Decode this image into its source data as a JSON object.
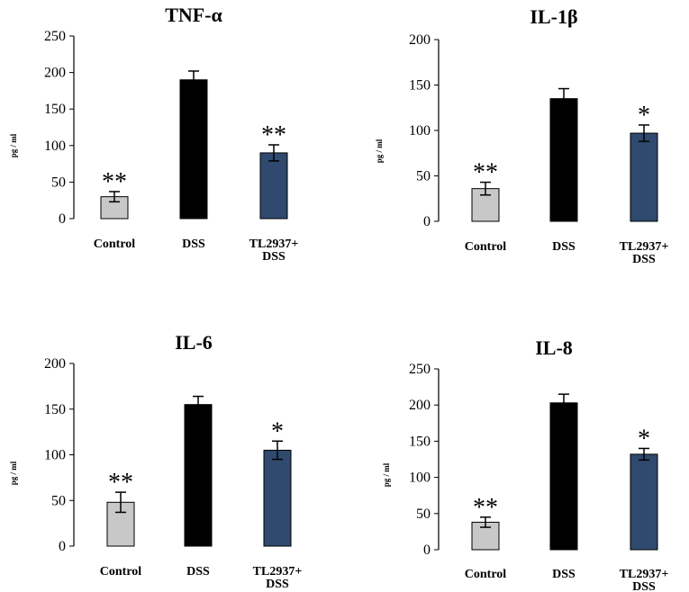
{
  "chart_data": [
    {
      "type": "bar",
      "title": "TNF-α",
      "ylabel": "pg / ml",
      "xlabel": "",
      "ylim": [
        0,
        250
      ],
      "yticks": [
        0,
        50,
        100,
        150,
        200,
        250
      ],
      "categories": [
        [
          "Control"
        ],
        [
          "DSS"
        ],
        [
          "TL2937+",
          "DSS"
        ]
      ],
      "values": [
        30,
        190,
        90
      ],
      "errors": [
        7,
        12,
        11
      ],
      "significance": [
        "**",
        "",
        "**"
      ],
      "colors": [
        "#c8c8c8",
        "#000000",
        "#2f4a6e"
      ]
    },
    {
      "type": "bar",
      "title": "IL-1β",
      "ylabel": "pg / ml",
      "xlabel": "",
      "ylim": [
        0,
        200
      ],
      "yticks": [
        0,
        50,
        100,
        150,
        200
      ],
      "categories": [
        [
          "Control"
        ],
        [
          "DSS"
        ],
        [
          "TL2937+",
          "DSS"
        ]
      ],
      "values": [
        36,
        135,
        97
      ],
      "errors": [
        7,
        11,
        9
      ],
      "significance": [
        "**",
        "",
        "*"
      ],
      "colors": [
        "#c8c8c8",
        "#000000",
        "#2f4a6e"
      ]
    },
    {
      "type": "bar",
      "title": "IL-6",
      "ylabel": "pg / ml",
      "xlabel": "",
      "ylim": [
        0,
        200
      ],
      "yticks": [
        0,
        50,
        100,
        150,
        200
      ],
      "categories": [
        [
          "Control"
        ],
        [
          "DSS"
        ],
        [
          "TL2937+",
          "DSS"
        ]
      ],
      "values": [
        48,
        155,
        105
      ],
      "errors": [
        11,
        9,
        10
      ],
      "significance": [
        "**",
        "",
        "*"
      ],
      "colors": [
        "#c8c8c8",
        "#000000",
        "#2f4a6e"
      ]
    },
    {
      "type": "bar",
      "title": "IL-8",
      "ylabel": "pg / ml",
      "xlabel": "",
      "ylim": [
        0,
        250
      ],
      "yticks": [
        0,
        50,
        100,
        150,
        200,
        250
      ],
      "categories": [
        [
          "Control"
        ],
        [
          "DSS"
        ],
        [
          "TL2937+",
          "DSS"
        ]
      ],
      "values": [
        38,
        203,
        132
      ],
      "errors": [
        7,
        12,
        8
      ],
      "significance": [
        "**",
        "",
        "*"
      ],
      "colors": [
        "#c8c8c8",
        "#000000",
        "#2f4a6e"
      ]
    }
  ]
}
